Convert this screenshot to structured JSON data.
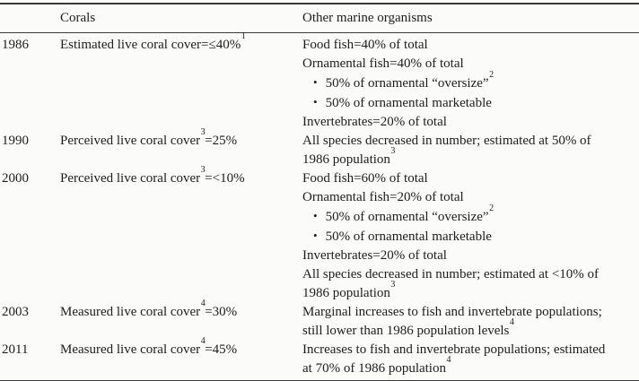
{
  "page": {
    "colors": {
      "paper": "#fbfbfa",
      "ink": "#1d1d1d",
      "rule": "#3a3a3a"
    },
    "bullet_glyph": "•"
  },
  "table": {
    "header": {
      "year": "",
      "corals": "Corals",
      "other": "Other marine organisms"
    },
    "rows": [
      {
        "year": "1986",
        "corals": [
          {
            "t": "Estimated live coral cover=≤40%"
          },
          {
            "s": "1"
          }
        ],
        "other": [
          {
            "bullet": false,
            "seg": [
              {
                "t": "Food fish=40% of total"
              }
            ]
          },
          {
            "bullet": false,
            "seg": [
              {
                "t": "Ornamental fish=40% of total"
              }
            ]
          },
          {
            "bullet": true,
            "seg": [
              {
                "t": "50% of ornamental “oversize”"
              },
              {
                "s": "2"
              }
            ]
          },
          {
            "bullet": true,
            "seg": [
              {
                "t": "50% of ornamental marketable"
              }
            ]
          },
          {
            "bullet": false,
            "seg": [
              {
                "t": "Invertebrates=20% of total"
              }
            ]
          }
        ]
      },
      {
        "year": "1990",
        "corals": [
          {
            "t": "Perceived live coral cover"
          },
          {
            "s": "3"
          },
          {
            "t": "=25%"
          }
        ],
        "other": [
          {
            "bullet": false,
            "seg": [
              {
                "t": "All species decreased in number; estimated at 50% of"
              }
            ]
          },
          {
            "bullet": false,
            "seg": [
              {
                "t": "1986 population"
              },
              {
                "s": "3"
              }
            ]
          }
        ]
      },
      {
        "year": "2000",
        "corals": [
          {
            "t": "Perceived live coral cover"
          },
          {
            "s": "3"
          },
          {
            "t": "=<10%"
          }
        ],
        "other": [
          {
            "bullet": false,
            "seg": [
              {
                "t": "Food fish=60% of total"
              }
            ]
          },
          {
            "bullet": false,
            "seg": [
              {
                "t": "Ornamental fish=20% of total"
              }
            ]
          },
          {
            "bullet": true,
            "seg": [
              {
                "t": "50% of ornamental “oversize”"
              },
              {
                "s": "2"
              }
            ]
          },
          {
            "bullet": true,
            "seg": [
              {
                "t": "50% of ornamental marketable"
              }
            ]
          },
          {
            "bullet": false,
            "seg": [
              {
                "t": "Invertebrates=20% of total"
              }
            ]
          },
          {
            "bullet": false,
            "seg": [
              {
                "t": "All species decreased in number; estimated at <10% of"
              }
            ]
          },
          {
            "bullet": false,
            "seg": [
              {
                "t": "1986 population"
              },
              {
                "s": "3"
              }
            ]
          }
        ]
      },
      {
        "year": "2003",
        "corals": [
          {
            "t": "Measured live coral cover"
          },
          {
            "s": "4"
          },
          {
            "t": "=30%"
          }
        ],
        "other": [
          {
            "bullet": false,
            "seg": [
              {
                "t": "Marginal increases to fish and invertebrate populations;"
              }
            ]
          },
          {
            "bullet": false,
            "seg": [
              {
                "t": "still lower than 1986 population levels"
              },
              {
                "s": "4"
              }
            ]
          }
        ]
      },
      {
        "year": "2011",
        "corals": [
          {
            "t": "Measured live coral cover"
          },
          {
            "s": "4"
          },
          {
            "t": "=45%"
          }
        ],
        "other": [
          {
            "bullet": false,
            "seg": [
              {
                "t": "Increases to fish and invertebrate populations; estimated"
              }
            ]
          },
          {
            "bullet": false,
            "seg": [
              {
                "t": "at 70% of 1986 population"
              },
              {
                "s": "4"
              }
            ]
          }
        ]
      }
    ]
  }
}
